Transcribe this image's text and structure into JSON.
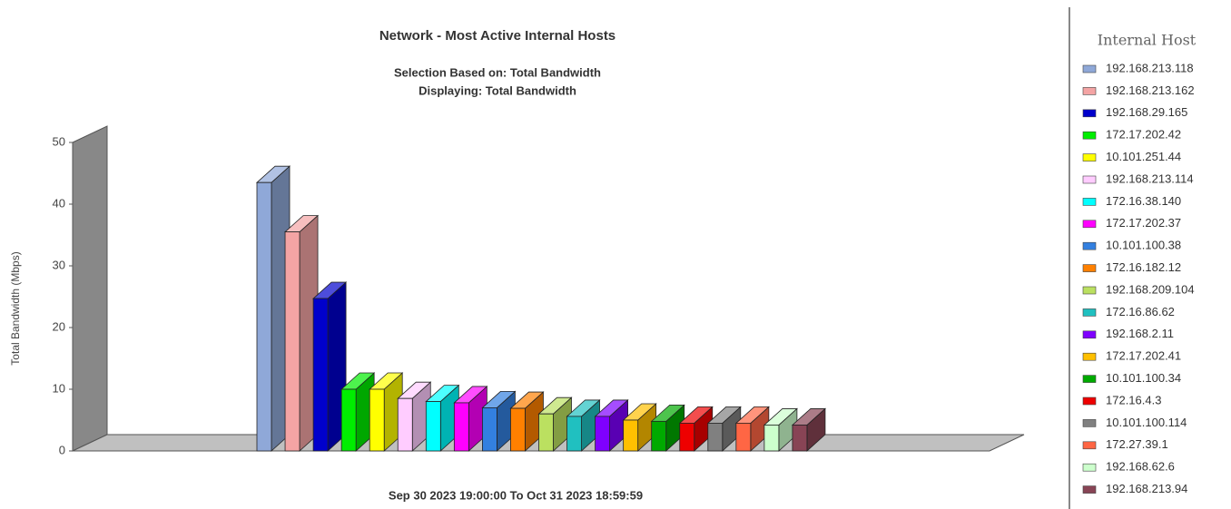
{
  "chart_data": {
    "type": "bar3d",
    "title": "Network - Most Active Internal Hosts",
    "subtitle": [
      "Selection Based on: Total Bandwidth",
      "Displaying: Total Bandwidth"
    ],
    "y_label": "Total Bandwidth (Mbps)",
    "x_label": "Sep 30 2023  19:00:00  To  Oct 31 2023  18:59:59",
    "legend_title": "Internal Host",
    "categories": [
      "192.168.213.118",
      "192.168.213.162",
      "192.168.29.165",
      "172.17.202.42",
      "10.101.251.44",
      "192.168.213.114",
      "172.16.38.140",
      "172.17.202.37",
      "10.101.100.38",
      "172.16.182.12",
      "192.168.209.104",
      "172.16.86.62",
      "192.168.2.11",
      "172.17.202.41",
      "10.101.100.34",
      "172.16.4.3",
      "10.101.100.114",
      "172.27.39.1",
      "192.168.62.6",
      "192.168.213.94"
    ],
    "values": [
      43.5,
      35.5,
      24.7,
      10,
      10,
      8.5,
      8,
      7.8,
      7,
      6.9,
      6,
      5.6,
      5.6,
      5,
      4.8,
      4.5,
      4.5,
      4.5,
      4.2,
      4.2
    ],
    "colors": [
      "#8fa8d8",
      "#f4a4a4",
      "#0000cc",
      "#00ee00",
      "#ffff00",
      "#ffccff",
      "#00ffff",
      "#ff00ff",
      "#3380e0",
      "#ff8000",
      "#bbe060",
      "#20c0c0",
      "#7f00ff",
      "#ffc000",
      "#00aa00",
      "#ee0000",
      "#808080",
      "#ff6644",
      "#ccffcc",
      "#884455"
    ],
    "ylim": [
      0,
      50
    ],
    "yticks": [
      0,
      10,
      20,
      30,
      40,
      50
    ],
    "grid": false
  }
}
